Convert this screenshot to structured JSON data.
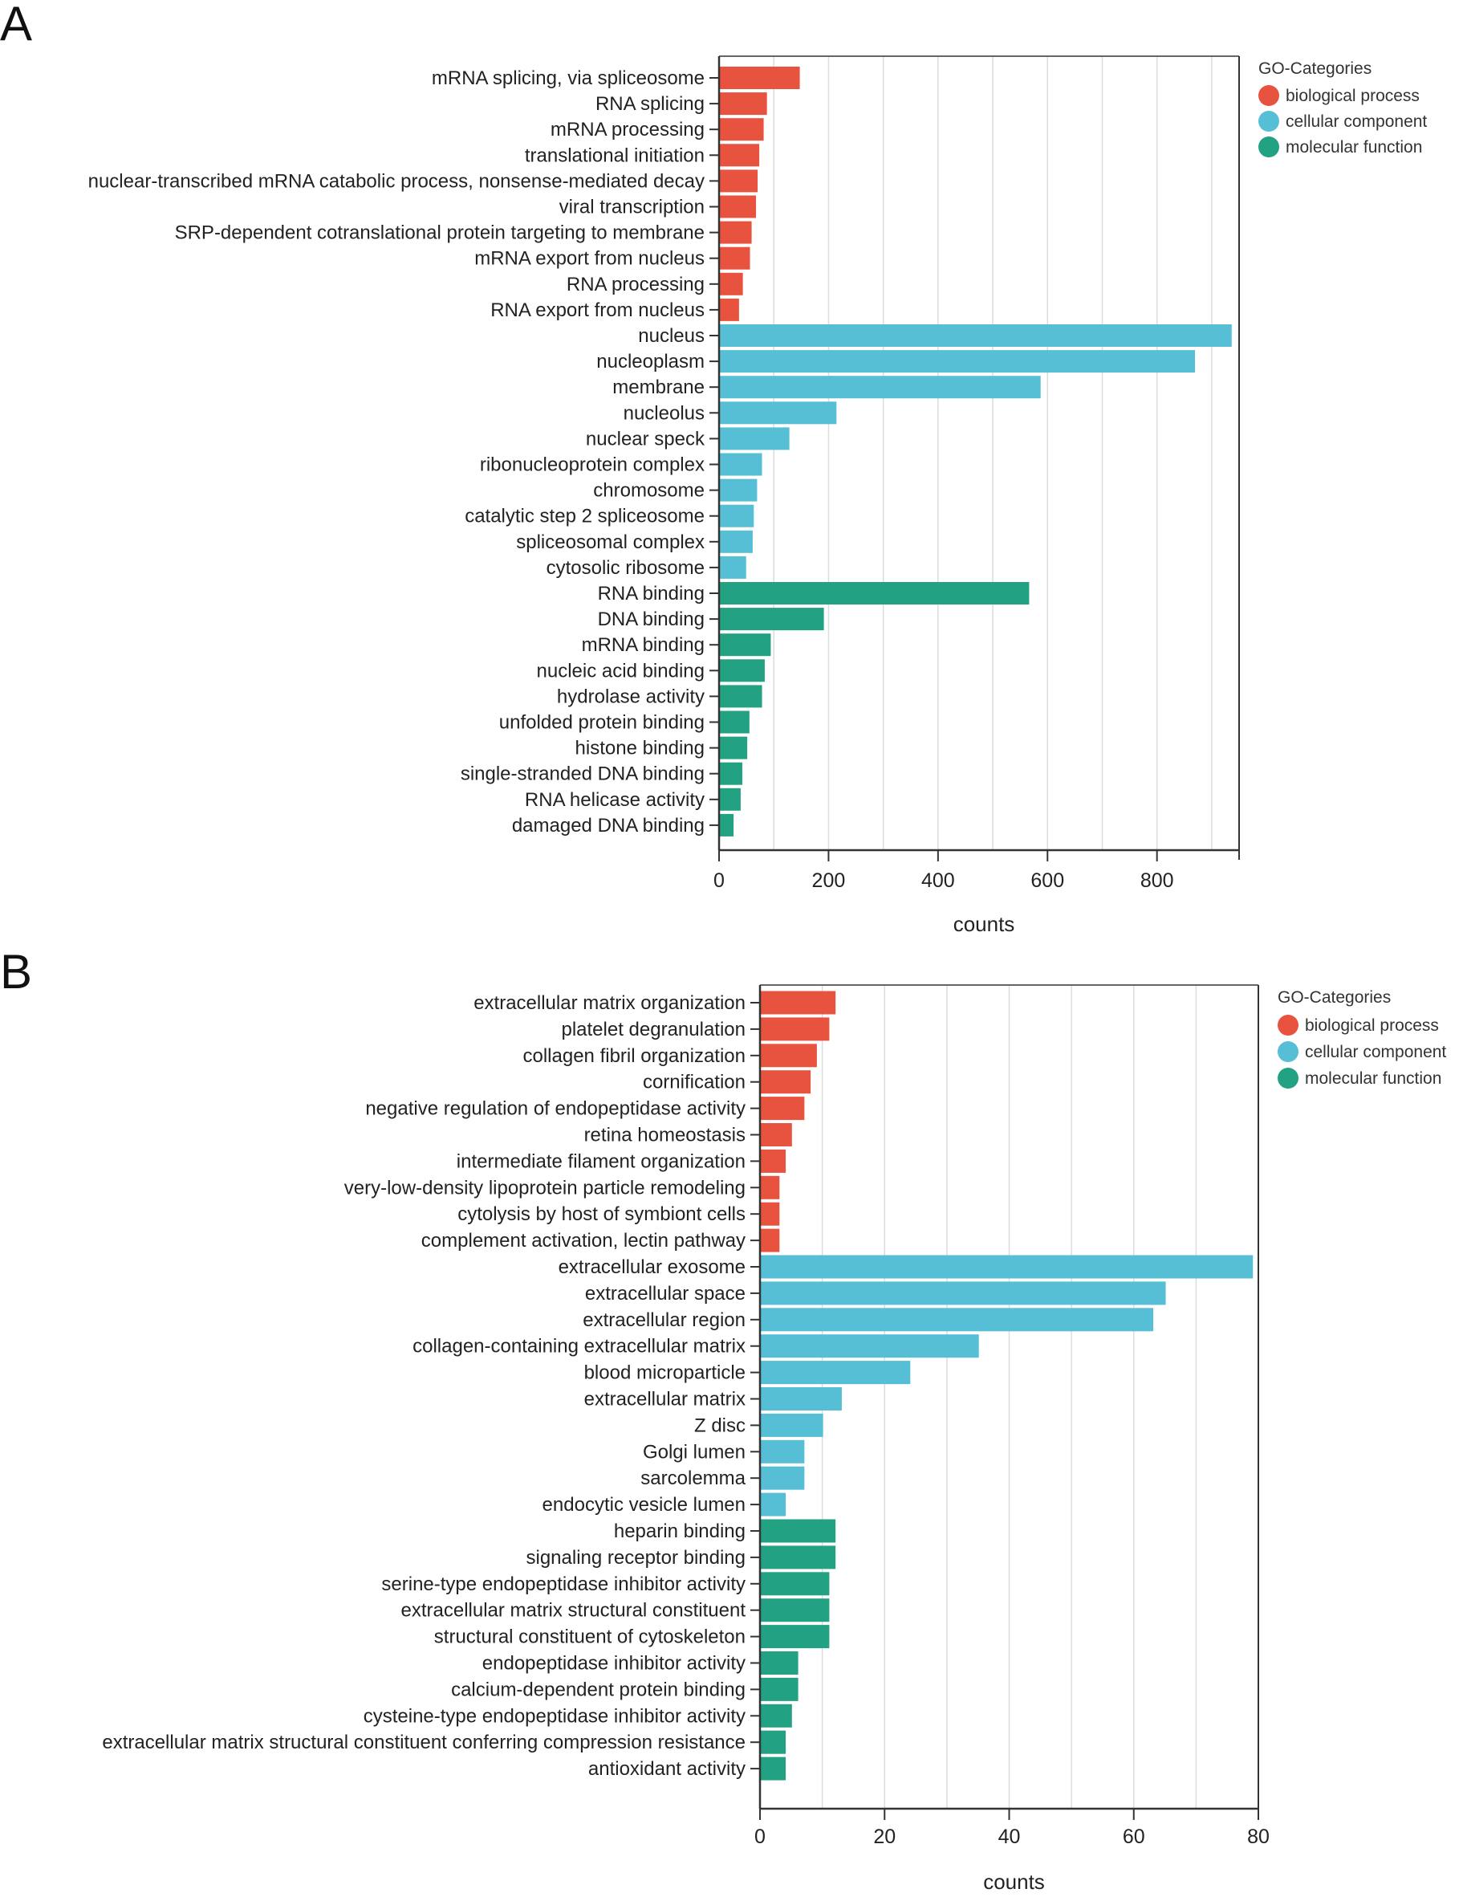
{
  "colors": {
    "biological_process": "#e8533f",
    "cellular_component": "#56bfd6",
    "molecular_function": "#23a283",
    "grid": "#dcdcdc",
    "axis": "#333333"
  },
  "panels": [
    {
      "letter": "A"
    },
    {
      "letter": "B"
    }
  ],
  "chart_data": [
    {
      "type": "bar",
      "orientation": "horizontal",
      "xlabel": "counts",
      "xlim": [
        0,
        950
      ],
      "xticks": [
        0,
        200,
        400,
        600,
        800
      ],
      "grid": true,
      "legend": {
        "title": "GO-Categories",
        "placement": "top-right",
        "entries": [
          "biological process",
          "cellular component",
          "molecular function"
        ]
      },
      "categories": [
        "mRNA splicing, via spliceosome",
        "RNA splicing",
        "mRNA processing",
        "translational initiation",
        "nuclear-transcribed mRNA catabolic process, nonsense-mediated decay",
        "viral transcription",
        "SRP-dependent cotranslational protein targeting to membrane",
        "mRNA export from nucleus",
        "RNA processing",
        "RNA export from nucleus",
        "nucleus",
        "nucleoplasm",
        "membrane",
        "nucleolus",
        "nuclear speck",
        "ribonucleoprotein complex",
        "chromosome",
        "catalytic step 2 spliceosome",
        "spliceosomal complex",
        "cytosolic ribosome",
        "RNA binding",
        "DNA binding",
        "mRNA binding",
        "nucleic acid binding",
        "hydrolase activity",
        "unfolded protein binding",
        "histone binding",
        "single-stranded DNA binding",
        "RNA helicase activity",
        "damaged DNA binding"
      ],
      "values": [
        146,
        86,
        80,
        72,
        69,
        66,
        58,
        55,
        42,
        35,
        935,
        868,
        586,
        213,
        127,
        77,
        68,
        62,
        60,
        48,
        565,
        190,
        93,
        82,
        77,
        54,
        50,
        41,
        38,
        25
      ],
      "groups": [
        "biological process",
        "biological process",
        "biological process",
        "biological process",
        "biological process",
        "biological process",
        "biological process",
        "biological process",
        "biological process",
        "biological process",
        "cellular component",
        "cellular component",
        "cellular component",
        "cellular component",
        "cellular component",
        "cellular component",
        "cellular component",
        "cellular component",
        "cellular component",
        "cellular component",
        "molecular function",
        "molecular function",
        "molecular function",
        "molecular function",
        "molecular function",
        "molecular function",
        "molecular function",
        "molecular function",
        "molecular function",
        "molecular function"
      ]
    },
    {
      "type": "bar",
      "orientation": "horizontal",
      "xlabel": "counts",
      "xlim": [
        0,
        80
      ],
      "xticks": [
        0,
        20,
        40,
        60,
        80
      ],
      "grid": true,
      "legend": {
        "title": "GO-Categories",
        "placement": "top-right",
        "entries": [
          "biological process",
          "cellular component",
          "molecular function"
        ]
      },
      "categories": [
        "extracellular matrix organization",
        "platelet degranulation",
        "collagen fibril organization",
        "cornification",
        "negative regulation of endopeptidase activity",
        "retina homeostasis",
        "intermediate filament organization",
        "very-low-density lipoprotein particle remodeling",
        "cytolysis by host of symbiont cells",
        "complement activation, lectin pathway",
        "extracellular exosome",
        "extracellular space",
        "extracellular region",
        "collagen-containing extracellular matrix",
        "blood microparticle",
        "extracellular matrix",
        "Z disc",
        "Golgi lumen",
        "sarcolemma",
        "endocytic vesicle lumen",
        "heparin binding",
        "signaling receptor binding",
        "serine-type endopeptidase inhibitor activity",
        "extracellular matrix structural constituent",
        "structural constituent of cytoskeleton",
        "endopeptidase inhibitor activity",
        "calcium-dependent protein binding",
        "cysteine-type endopeptidase inhibitor activity",
        "extracellular matrix structural constituent conferring compression resistance",
        "antioxidant activity"
      ],
      "values": [
        12,
        11,
        9,
        8,
        7,
        5,
        4,
        3,
        3,
        3,
        79,
        65,
        63,
        35,
        24,
        13,
        10,
        7,
        7,
        4,
        12,
        12,
        11,
        11,
        11,
        6,
        6,
        5,
        4,
        4
      ],
      "groups": [
        "biological process",
        "biological process",
        "biological process",
        "biological process",
        "biological process",
        "biological process",
        "biological process",
        "biological process",
        "biological process",
        "biological process",
        "cellular component",
        "cellular component",
        "cellular component",
        "cellular component",
        "cellular component",
        "cellular component",
        "cellular component",
        "cellular component",
        "cellular component",
        "cellular component",
        "molecular function",
        "molecular function",
        "molecular function",
        "molecular function",
        "molecular function",
        "molecular function",
        "molecular function",
        "molecular function",
        "molecular function",
        "molecular function"
      ]
    }
  ]
}
